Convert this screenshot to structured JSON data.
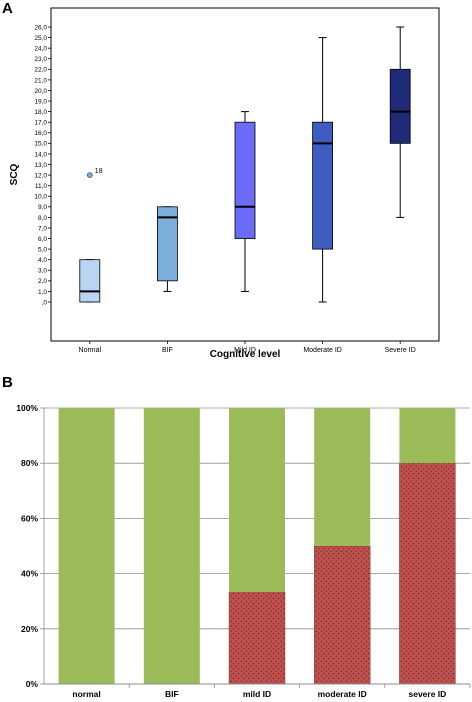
{
  "panels": {
    "a_letter": "A",
    "b_letter": "B"
  },
  "chart_data": [
    {
      "type": "box",
      "panel": "A",
      "title": "",
      "xlabel": "Cognitive level",
      "ylabel": "SCQ",
      "ylim": [
        0,
        26
      ],
      "yticks": [
        ",0",
        "1,0",
        "2,0",
        "3,0",
        "4,0",
        "5,0",
        "6,0",
        "7,0",
        "8,0",
        "9,0",
        "10,0",
        "11,0",
        "12,0",
        "13,0",
        "14,0",
        "15,0",
        "16,0",
        "17,0",
        "18,0",
        "19,0",
        "20,0",
        "21,0",
        "22,0",
        "23,0",
        "24,0",
        "25,0",
        "26,0"
      ],
      "categories": [
        "Normal",
        "BIF",
        "Mild ID",
        "Moderate ID",
        "Severe ID"
      ],
      "boxes": [
        {
          "min": 0,
          "q1": 0,
          "median": 1,
          "q3": 4,
          "max": 4,
          "color": "#b8d6f4"
        },
        {
          "min": 1,
          "q1": 2,
          "median": 8,
          "q3": 9,
          "max": 9,
          "color": "#7cafdc"
        },
        {
          "min": 1,
          "q1": 6,
          "median": 9,
          "q3": 17,
          "max": 18,
          "color": "#6b6bf5"
        },
        {
          "min": 0,
          "q1": 5,
          "median": 15,
          "q3": 17,
          "max": 25,
          "color": "#3d5ec0"
        },
        {
          "min": 8,
          "q1": 15,
          "median": 18,
          "q3": 22,
          "max": 26,
          "color": "#1f2a78"
        }
      ],
      "outliers": [
        {
          "category": "Normal",
          "value": 12,
          "label": "18"
        }
      ],
      "grid": false
    },
    {
      "type": "bar",
      "stacked": true,
      "panel": "B",
      "title": "",
      "xlabel": "",
      "ylabel": "",
      "ylim": [
        0,
        100
      ],
      "yticks": [
        "0%",
        "20%",
        "40%",
        "60%",
        "80%",
        "100%"
      ],
      "categories": [
        "normal",
        "BIF",
        "mild ID",
        "moderate ID",
        "severe ID"
      ],
      "series": [
        {
          "values": [
            0,
            0,
            33.3,
            50,
            80
          ],
          "color": "#c0504d"
        },
        {
          "values": [
            100,
            100,
            66.7,
            50,
            20
          ],
          "color": "#9bbb59"
        }
      ],
      "grid": true
    }
  ]
}
